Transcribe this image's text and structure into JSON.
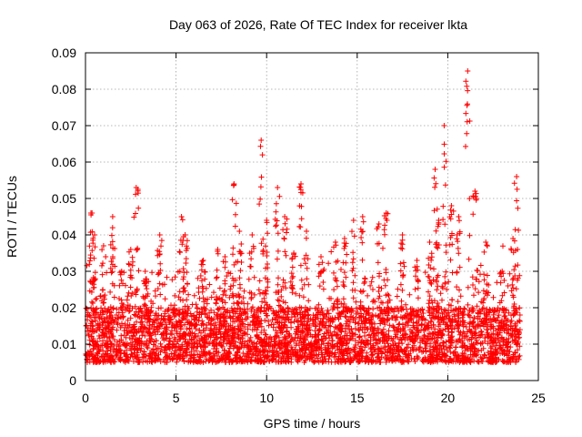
{
  "chart_data": {
    "type": "scatter",
    "title": "Day 063 of 2026, Rate Of TEC Index for receiver lkta",
    "xlabel": "GPS time / hours",
    "ylabel": "ROTI / TECUs",
    "xlim": [
      0,
      25
    ],
    "ylim": [
      0,
      0.09
    ],
    "xticks": [
      0,
      5,
      10,
      15,
      20,
      25
    ],
    "xtick_labels": [
      "0",
      "5",
      "10",
      "15",
      "20",
      "25"
    ],
    "yticks": [
      0,
      0.01,
      0.02,
      0.03,
      0.04,
      0.05,
      0.06,
      0.07,
      0.08,
      0.09
    ],
    "ytick_labels": [
      "0",
      "0.01",
      "0.02",
      "0.03",
      "0.04",
      "0.05",
      "0.06",
      "0.07",
      "0.08",
      "0.09"
    ],
    "grid": true,
    "marker": "+",
    "color": "#ff0000",
    "data_x_range": [
      0,
      24
    ],
    "baseline_band": [
      0.005,
      0.02
    ],
    "spikes": [
      {
        "x": 0.3,
        "y": 0.046
      },
      {
        "x": 0.5,
        "y": 0.04
      },
      {
        "x": 1.0,
        "y": 0.037
      },
      {
        "x": 1.5,
        "y": 0.045
      },
      {
        "x": 2.0,
        "y": 0.03
      },
      {
        "x": 2.5,
        "y": 0.036
      },
      {
        "x": 2.8,
        "y": 0.053
      },
      {
        "x": 3.3,
        "y": 0.03
      },
      {
        "x": 4.1,
        "y": 0.04
      },
      {
        "x": 5.3,
        "y": 0.045
      },
      {
        "x": 5.5,
        "y": 0.04
      },
      {
        "x": 6.5,
        "y": 0.033
      },
      {
        "x": 7.3,
        "y": 0.036
      },
      {
        "x": 7.7,
        "y": 0.034
      },
      {
        "x": 8.2,
        "y": 0.054
      },
      {
        "x": 8.5,
        "y": 0.041
      },
      {
        "x": 9.2,
        "y": 0.04
      },
      {
        "x": 9.7,
        "y": 0.066
      },
      {
        "x": 10.0,
        "y": 0.044
      },
      {
        "x": 10.6,
        "y": 0.053
      },
      {
        "x": 11.0,
        "y": 0.045
      },
      {
        "x": 11.5,
        "y": 0.035
      },
      {
        "x": 11.9,
        "y": 0.054
      },
      {
        "x": 12.2,
        "y": 0.041
      },
      {
        "x": 13.0,
        "y": 0.034
      },
      {
        "x": 13.8,
        "y": 0.038
      },
      {
        "x": 14.3,
        "y": 0.039
      },
      {
        "x": 14.8,
        "y": 0.044
      },
      {
        "x": 15.3,
        "y": 0.045
      },
      {
        "x": 16.2,
        "y": 0.043
      },
      {
        "x": 16.6,
        "y": 0.046
      },
      {
        "x": 17.5,
        "y": 0.04
      },
      {
        "x": 18.3,
        "y": 0.033
      },
      {
        "x": 19.0,
        "y": 0.038
      },
      {
        "x": 19.3,
        "y": 0.058
      },
      {
        "x": 19.5,
        "y": 0.044
      },
      {
        "x": 19.8,
        "y": 0.07
      },
      {
        "x": 20.2,
        "y": 0.048
      },
      {
        "x": 20.6,
        "y": 0.045
      },
      {
        "x": 21.1,
        "y": 0.085
      },
      {
        "x": 21.5,
        "y": 0.052
      },
      {
        "x": 22.1,
        "y": 0.038
      },
      {
        "x": 23.0,
        "y": 0.03
      },
      {
        "x": 23.6,
        "y": 0.039
      },
      {
        "x": 23.8,
        "y": 0.056
      }
    ]
  }
}
